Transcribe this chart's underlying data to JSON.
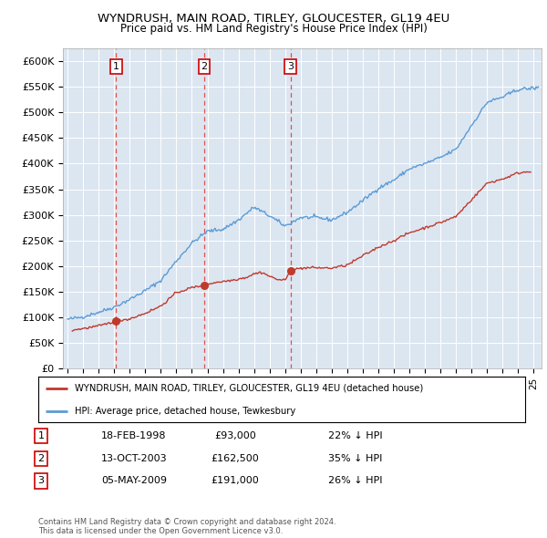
{
  "title1": "WYNDRUSH, MAIN ROAD, TIRLEY, GLOUCESTER, GL19 4EU",
  "title2": "Price paid vs. HM Land Registry's House Price Index (HPI)",
  "ylabel_ticks": [
    "£0",
    "£50K",
    "£100K",
    "£150K",
    "£200K",
    "£250K",
    "£300K",
    "£350K",
    "£400K",
    "£450K",
    "£500K",
    "£550K",
    "£600K"
  ],
  "ytick_values": [
    0,
    50000,
    100000,
    150000,
    200000,
    250000,
    300000,
    350000,
    400000,
    450000,
    500000,
    550000,
    600000
  ],
  "ylim": [
    0,
    625000
  ],
  "xlim_start": 1994.7,
  "xlim_end": 2025.5,
  "background_color": "#dce6f1",
  "plot_bg_color": "#dce6f1",
  "hpi_color": "#5b9bd5",
  "price_color": "#c0392b",
  "dashed_color": "#e05050",
  "transaction_dates": [
    1998.12,
    2003.79,
    2009.35
  ],
  "transaction_prices": [
    93000,
    162500,
    191000
  ],
  "transaction_labels": [
    "1",
    "2",
    "3"
  ],
  "legend_label_red": "WYNDRUSH, MAIN ROAD, TIRLEY, GLOUCESTER, GL19 4EU (detached house)",
  "legend_label_blue": "HPI: Average price, detached house, Tewkesbury",
  "table_rows": [
    {
      "num": "1",
      "date": "18-FEB-1998",
      "price": "£93,000",
      "hpi": "22% ↓ HPI"
    },
    {
      "num": "2",
      "date": "13-OCT-2003",
      "price": "£162,500",
      "hpi": "35% ↓ HPI"
    },
    {
      "num": "3",
      "date": "05-MAY-2009",
      "price": "£191,000",
      "hpi": "26% ↓ HPI"
    }
  ],
  "footer": "Contains HM Land Registry data © Crown copyright and database right 2024.\nThis data is licensed under the Open Government Licence v3.0.",
  "xtick_years": [
    1995,
    1996,
    1997,
    1998,
    1999,
    2000,
    2001,
    2002,
    2003,
    2004,
    2005,
    2006,
    2007,
    2008,
    2009,
    2010,
    2011,
    2012,
    2013,
    2014,
    2015,
    2016,
    2017,
    2018,
    2019,
    2020,
    2021,
    2022,
    2023,
    2024,
    2025
  ]
}
